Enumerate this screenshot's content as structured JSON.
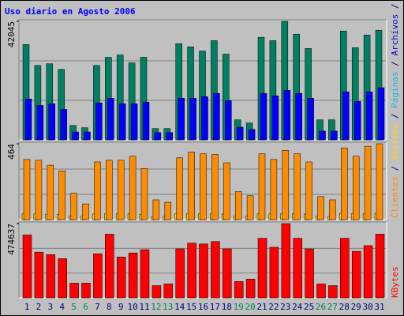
{
  "title": "Uso diario en Agosto 2006",
  "side_label": [
    {
      "text": "Clientes",
      "color": "#ff8c00"
    },
    {
      "text": " / ",
      "color": "#000080"
    },
    {
      "text": "Visitas",
      "color": "#ffd700"
    },
    {
      "text": " / ",
      "color": "#000080"
    },
    {
      "text": "Páginas",
      "color": "#1eb4e6"
    },
    {
      "text": " / ",
      "color": "#000080"
    },
    {
      "text": "Archivos",
      "color": "#0000cc"
    },
    {
      "text": " / ",
      "color": "#000080"
    },
    {
      "text": "Accesos",
      "color": "#008060"
    }
  ],
  "chart_data": [
    {
      "type": "bar",
      "ylim": [
        0,
        42045
      ],
      "yticks": [
        42045
      ],
      "series": [
        {
          "name": "Accesos",
          "color": "#008060",
          "values": [
            33800,
            26400,
            27000,
            25000,
            5100,
            4300,
            26400,
            29300,
            30100,
            27300,
            29300,
            4000,
            4000,
            34100,
            33000,
            31500,
            35200,
            30400,
            7100,
            6000,
            36400,
            35200,
            42045,
            37500,
            32400,
            7100,
            7100,
            38600,
            32700,
            37200,
            38900
          ]
        },
        {
          "name": "Archivos",
          "color": "#0000ff",
          "values": [
            14500,
            12200,
            12800,
            10800,
            2800,
            2800,
            13100,
            14800,
            12800,
            12800,
            13400,
            2600,
            2600,
            14800,
            14800,
            15300,
            16500,
            13900,
            4500,
            3700,
            16500,
            15600,
            17600,
            16500,
            14800,
            3100,
            3100,
            17000,
            13600,
            17000,
            18500
          ]
        }
      ]
    },
    {
      "type": "bar",
      "ylim": [
        0,
        464
      ],
      "yticks": [
        464
      ],
      "series": [
        {
          "name": "Visitas",
          "color": "#ffd700",
          "values": [
            35,
            35,
            33,
            32,
            22,
            20,
            34,
            35,
            35,
            36,
            33,
            20,
            20,
            36,
            38,
            37,
            37,
            34,
            22,
            21,
            37,
            35,
            38,
            37,
            34,
            21,
            20,
            38,
            36,
            38,
            39
          ]
        },
        {
          "name": "Clientes",
          "color": "#ff8c00",
          "values": [
            368,
            363,
            333,
            298,
            161,
            96,
            353,
            363,
            363,
            388,
            313,
            121,
            106,
            378,
            414,
            403,
            398,
            348,
            171,
            146,
            403,
            368,
            424,
            403,
            353,
            141,
            121,
            439,
            388,
            449,
            464
          ]
        }
      ]
    },
    {
      "type": "bar",
      "ylim": [
        0,
        474637
      ],
      "yticks": [
        474637
      ],
      "side_label": "KBytes",
      "categories": [
        "1",
        "2",
        "3",
        "4",
        "5",
        "6",
        "7",
        "8",
        "9",
        "10",
        "11",
        "12",
        "13",
        "14",
        "15",
        "16",
        "17",
        "18",
        "19",
        "20",
        "21",
        "22",
        "23",
        "24",
        "25",
        "26",
        "27",
        "28",
        "29",
        "30",
        "31"
      ],
      "label_colors": [
        "#000080",
        "#000080",
        "#000080",
        "#000080",
        "#008060",
        "#008060",
        "#000080",
        "#000080",
        "#000080",
        "#000080",
        "#000080",
        "#008060",
        "#008060",
        "#000080",
        "#000080",
        "#000080",
        "#000080",
        "#000080",
        "#008060",
        "#008060",
        "#000080",
        "#000080",
        "#000080",
        "#000080",
        "#000080",
        "#008060",
        "#008060",
        "#000080",
        "#000080",
        "#000080",
        "#000080"
      ],
      "series": [
        {
          "name": "KBytes",
          "color": "#ff0000",
          "values": [
            401600,
            292000,
            276400,
            250400,
            93900,
            93900,
            281600,
            406800,
            260800,
            286900,
            307700,
            78200,
            88700,
            313000,
            349500,
            344300,
            359900,
            313000,
            104300,
            120000,
            380800,
            323400,
            474637,
            380800,
            313000,
            88700,
            78200,
            380800,
            297300,
            333700,
            406800
          ]
        }
      ]
    }
  ]
}
